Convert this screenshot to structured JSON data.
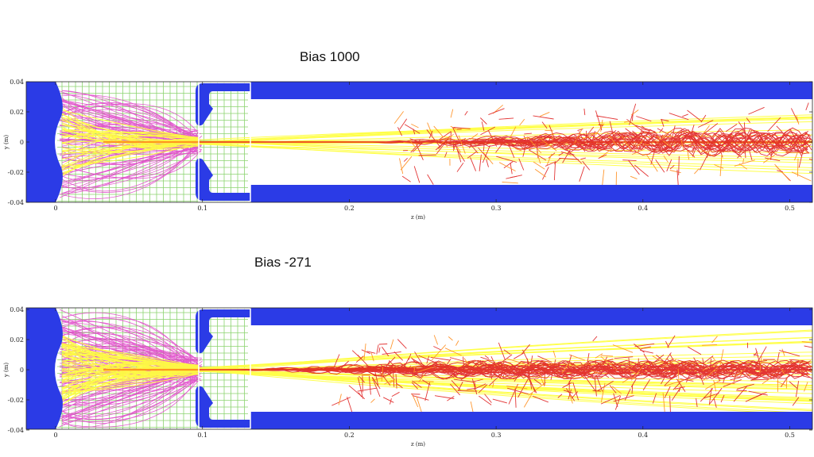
{
  "colors": {
    "electrode": "#2b3be6",
    "grid": "#7fcf5f",
    "magenta": "#e040c8",
    "yellow": "#ffff40",
    "red": "#e02020",
    "orange": "#ff8c1a"
  },
  "panels": [
    {
      "title": "Bias 1000",
      "xlabel": "z (m)",
      "ylabel": "y (m)",
      "x_ticks": [
        "0",
        "0.1",
        "0.2",
        "0.3",
        "0.4",
        "0.5"
      ],
      "y_ticks": [
        "0.04",
        "0.02",
        "0",
        "-0.02",
        "-0.04"
      ]
    },
    {
      "title": "Bias -271",
      "xlabel": "z (m)",
      "ylabel": "y (m)",
      "x_ticks": [
        "0",
        "0.1",
        "0.2",
        "0.3",
        "0.4",
        "0.5"
      ],
      "y_ticks": [
        "0.04",
        "0.02",
        "0",
        "-0.02",
        "-0.04"
      ]
    }
  ]
}
